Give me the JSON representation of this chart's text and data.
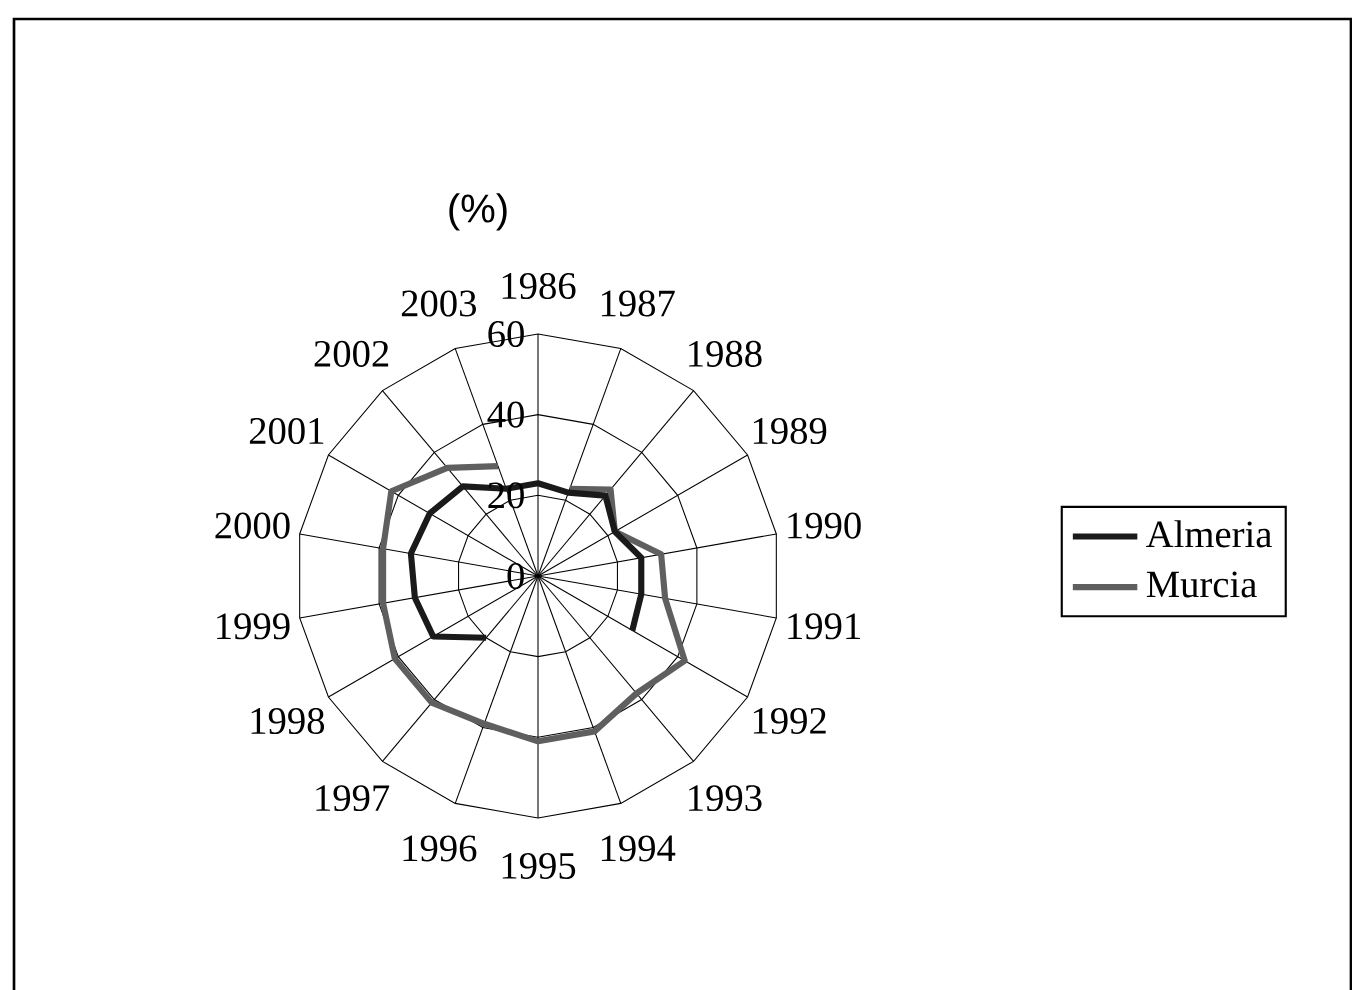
{
  "chart_data": {
    "type": "radar",
    "ylabel": "(%)",
    "categories": [
      "1986",
      "1987",
      "1988",
      "1989",
      "1990",
      "1991",
      "1992",
      "1993",
      "1994",
      "1995",
      "1996",
      "1997",
      "1998",
      "1999",
      "2000",
      "2001",
      "2002",
      "2003"
    ],
    "series": [
      {
        "name": "Almeria",
        "color": "#1a1a1a",
        "values": [
          23,
          22,
          26,
          22,
          26,
          26,
          27,
          null,
          null,
          null,
          null,
          20,
          30,
          31,
          32,
          31,
          29,
          23
        ]
      },
      {
        "name": "Murcia",
        "color": "#5f5f5f",
        "values": [
          null,
          23,
          28,
          22,
          31,
          32,
          42,
          38,
          41,
          41,
          39,
          41,
          41,
          39,
          39,
          42,
          35,
          29
        ]
      }
    ],
    "ylim": [
      0,
      60
    ],
    "yticks": [
      0,
      20,
      40,
      60
    ],
    "grid": true,
    "legend": "right",
    "marker": "none",
    "line_style": "solid"
  }
}
